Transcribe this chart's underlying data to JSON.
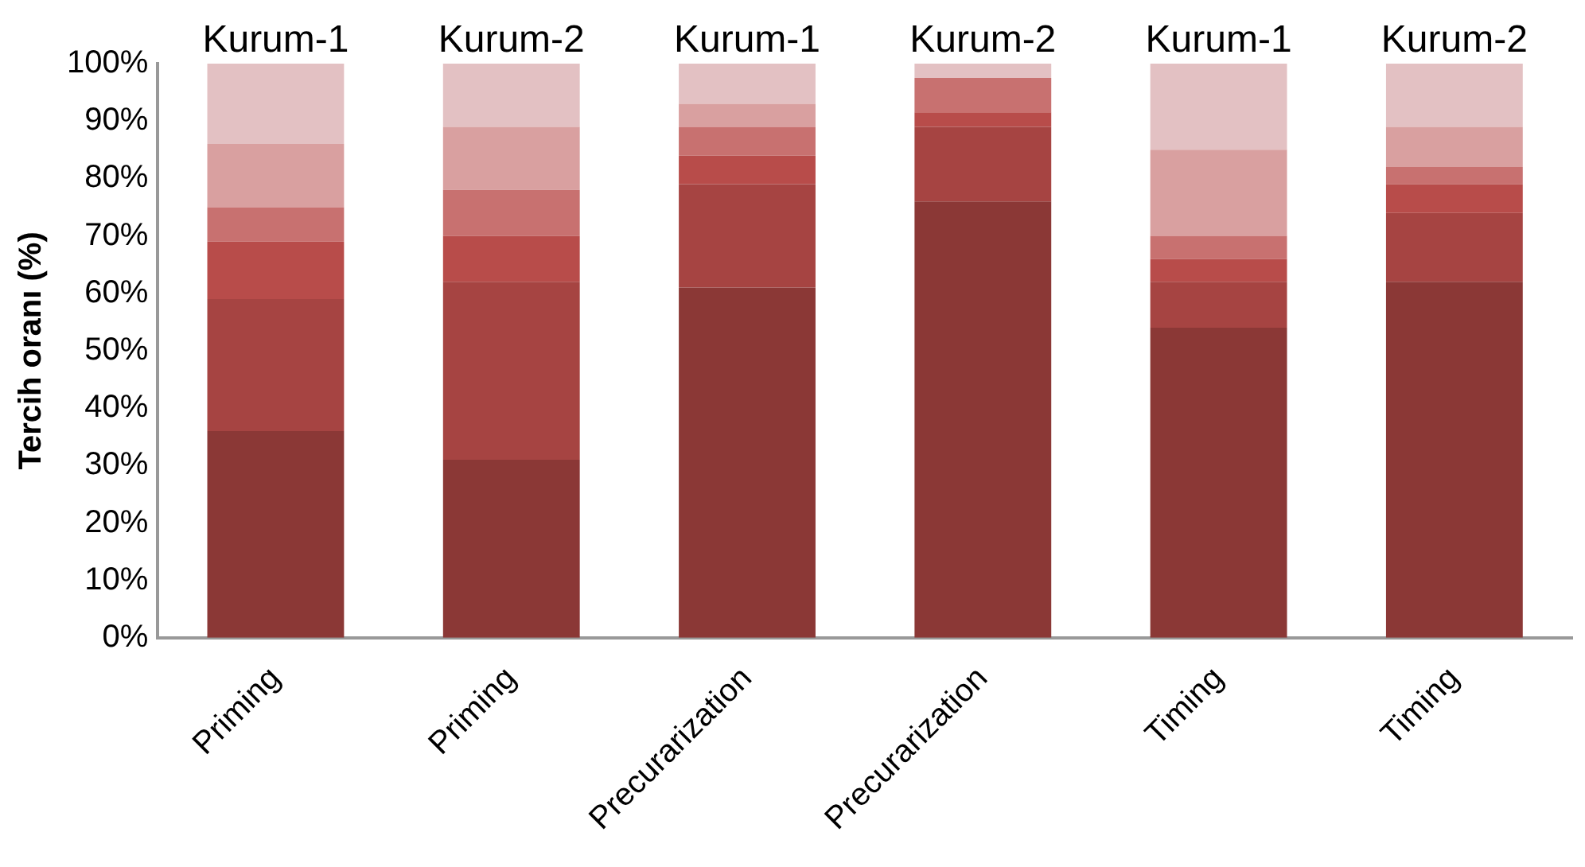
{
  "chart_data": {
    "type": "bar",
    "stacked": true,
    "ylabel": "Tercih oranı (%)",
    "categories": [
      "Priming",
      "Priming",
      "Precurarization",
      "Precurarization",
      "Timing",
      "Timing"
    ],
    "annotations": [
      "Kurum-1",
      "Kurum-2",
      "Kurum-1",
      "Kurum-2",
      "Kurum-1",
      "Kurum-2"
    ],
    "series": [
      {
        "color": "#8b3836",
        "values": [
          36,
          31,
          61,
          76,
          54,
          62
        ]
      },
      {
        "color": "#a64442",
        "values": [
          23,
          31,
          18,
          13,
          8,
          12
        ]
      },
      {
        "color": "#b84c4a",
        "values": [
          10,
          8,
          5,
          2.5,
          4,
          5
        ]
      },
      {
        "color": "#c87170",
        "values": [
          6,
          8,
          5,
          6,
          4,
          3
        ]
      },
      {
        "color": "#d9a0a0",
        "values": [
          11,
          11,
          4,
          0,
          15,
          7
        ]
      },
      {
        "color": "#e3c1c3",
        "values": [
          14,
          11,
          7,
          2.5,
          15,
          11
        ]
      }
    ],
    "ylim": [
      0,
      100
    ],
    "yticks": [
      {
        "value": 0,
        "label": "0%"
      },
      {
        "value": 10,
        "label": "10%"
      },
      {
        "value": 20,
        "label": "20%"
      },
      {
        "value": 30,
        "label": "30%"
      },
      {
        "value": 40,
        "label": "40%"
      },
      {
        "value": 50,
        "label": "50%"
      },
      {
        "value": 60,
        "label": "60%"
      },
      {
        "value": 70,
        "label": "70%"
      },
      {
        "value": 80,
        "label": "80%"
      },
      {
        "value": 90,
        "label": "90%"
      },
      {
        "value": 100,
        "label": "100%"
      }
    ],
    "grid": false,
    "legend": false
  }
}
